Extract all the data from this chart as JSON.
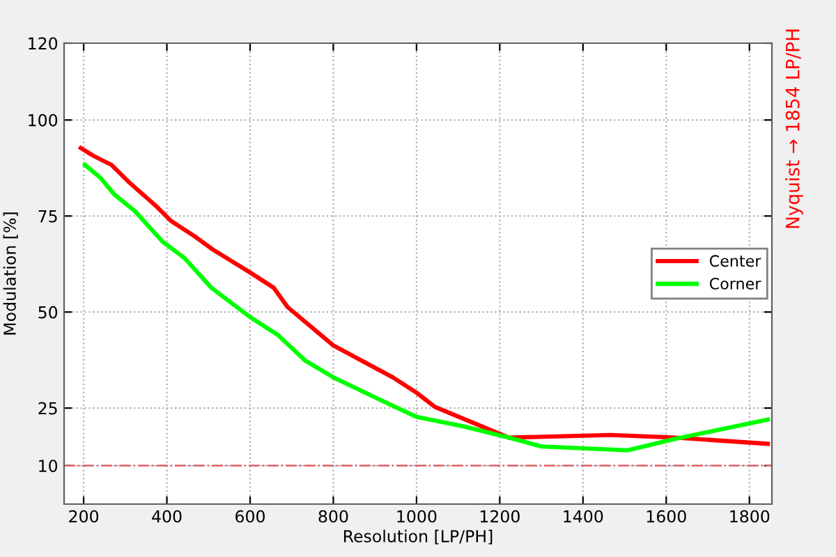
{
  "chart_data": {
    "type": "line",
    "xlabel": "Resolution [LP/PH]",
    "ylabel": "Modulation [%]",
    "xlim": [
      153,
      1854
    ],
    "xticks": [
      200,
      400,
      600,
      800,
      1000,
      1200,
      1400,
      1600,
      1800
    ],
    "ylim": [
      0,
      120
    ],
    "yticks": [
      10,
      25,
      50,
      75,
      100,
      120
    ],
    "grid": true,
    "legend": "right",
    "line_style": "solid",
    "series": [
      {
        "name": "Center",
        "color": "#ff0000",
        "x": [
          193,
          223,
          267,
          310,
          377,
          410,
          467,
          510,
          600,
          657,
          690,
          800,
          943,
          1000,
          1044,
          1222,
          1467,
          1622,
          1844
        ],
        "values": [
          92.7,
          90.7,
          88.3,
          83.7,
          77.3,
          73.7,
          69.7,
          66.3,
          60.3,
          56.3,
          51.3,
          41.3,
          33,
          29,
          25.3,
          17.3,
          18,
          17.3,
          15.7
        ]
      },
      {
        "name": "Corner",
        "color": "#00ff00",
        "x": [
          203,
          240,
          273,
          323,
          390,
          443,
          507,
          600,
          667,
          733,
          800,
          910,
          1000,
          1110,
          1222,
          1300,
          1507,
          1622,
          1844
        ],
        "values": [
          88.3,
          85,
          80.7,
          76.3,
          68.3,
          64,
          56.3,
          48.7,
          44,
          37.3,
          33,
          27.3,
          22.7,
          20.3,
          17.3,
          15,
          14,
          17,
          22
        ]
      }
    ],
    "ref_lines": [
      {
        "axis": "y",
        "value": 10,
        "color": "#e06060",
        "line_style": "dashdot"
      }
    ],
    "annotations": [
      "Nyquist → 1854 LP/PH"
    ]
  }
}
